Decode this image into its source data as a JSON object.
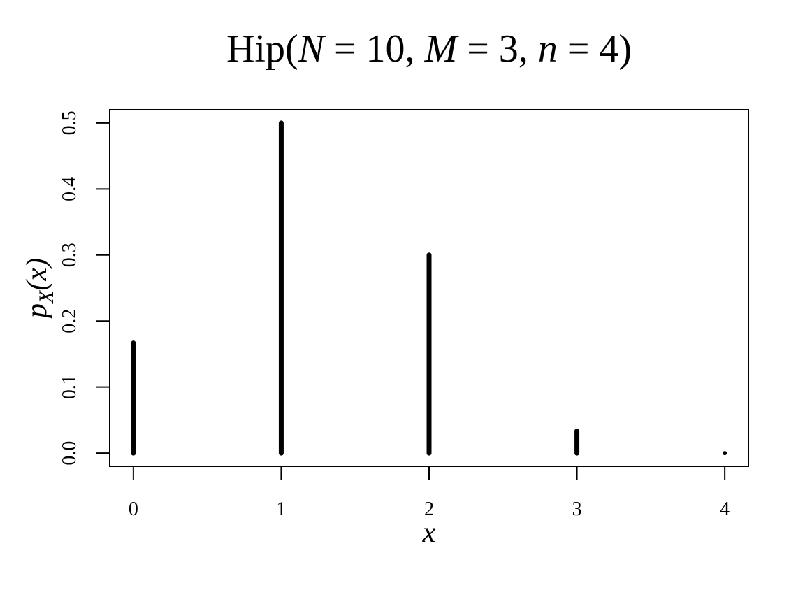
{
  "chart_data": {
    "type": "bar",
    "title": {
      "prefix": "Hip(",
      "N": "N",
      "N_val": " = 10, ",
      "M": "M",
      "M_val": " = 3, ",
      "n": "n",
      "n_val": " = 4)"
    },
    "xlabel": "x",
    "ylabel": {
      "p": "p",
      "sub": "X",
      "arg": "(x)"
    },
    "x": [
      0,
      1,
      2,
      3,
      4
    ],
    "values": [
      0.1667,
      0.5,
      0.3,
      0.0333,
      0.0
    ],
    "xticks": [
      "0",
      "1",
      "2",
      "3",
      "4"
    ],
    "yticks": [
      "0.0",
      "0.1",
      "0.2",
      "0.3",
      "0.4",
      "0.5"
    ],
    "xlim": [
      -0.16,
      4.16
    ],
    "ylim": [
      -0.02,
      0.52
    ],
    "grid": false,
    "colors": {
      "line": "#000000"
    }
  }
}
